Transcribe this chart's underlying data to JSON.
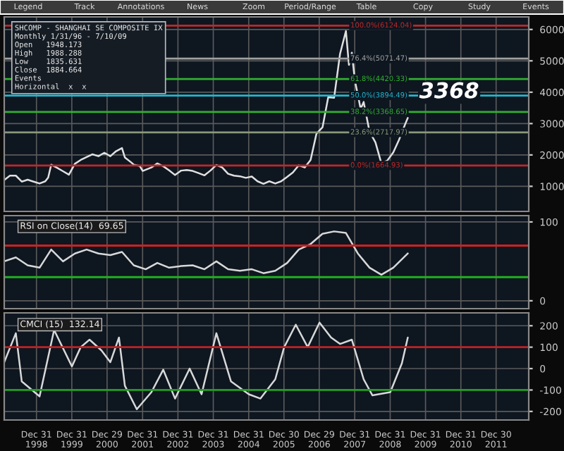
{
  "chart_data": [
    {
      "type": "other",
      "annotations": [
        "Legend",
        "Track",
        "Annotations",
        "News",
        "Zoom",
        "Period/Range",
        "Table",
        "Copy",
        "Study",
        "Events"
      ]
    },
    {
      "type": "line",
      "xlim": [
        "1998-02",
        "2012-12"
      ],
      "ylim": [
        200,
        6400
      ],
      "yticks": [
        1000,
        2000,
        3000,
        4000,
        5000,
        6000
      ],
      "xticks": [
        {
          "value": "1998-12-31",
          "label": null
        },
        {
          "value": "1999-12-31",
          "label": null
        },
        {
          "value": "2000-12-29",
          "label": null
        },
        {
          "value": "2001-12-31",
          "label": null
        },
        {
          "value": "2002-12-31",
          "label": null
        },
        {
          "value": "2003-12-31",
          "label": null
        },
        {
          "value": "2004-12-31",
          "label": null
        },
        {
          "value": "2005-12-30",
          "label": null
        },
        {
          "value": "2006-12-29",
          "label": null
        },
        {
          "value": "2007-12-31",
          "label": null
        },
        {
          "value": "2008-12-31",
          "label": null
        },
        {
          "value": "2009-12-31",
          "label": null
        },
        {
          "value": "2010-12-31",
          "label": null
        },
        {
          "value": "2011-12-30",
          "label": null
        }
      ],
      "tick_labels": "y",
      "grid": true,
      "marker": "none",
      "line_style": "solid",
      "series": [
        {
          "color": "#e0e0e0",
          "x": [
            "1998-02",
            "1998-04",
            "1998-06",
            "1998-08",
            "1998-10",
            "1998-12",
            "1999-02",
            "1999-04",
            "1999-05",
            "1999-06",
            "1999-08",
            "1999-10",
            "1999-12",
            "2000-02",
            "2000-04",
            "2000-06",
            "2000-08",
            "2000-10",
            "2000-12",
            "2001-02",
            "2001-04",
            "2001-06",
            "2001-07",
            "2001-09",
            "2001-10",
            "2001-12",
            "2002-01",
            "2002-04",
            "2002-06",
            "2002-08",
            "2002-10",
            "2002-12",
            "2003-02",
            "2003-04",
            "2003-06",
            "2003-08",
            "2003-10",
            "2003-12",
            "2004-02",
            "2004-04",
            "2004-06",
            "2004-08",
            "2004-10",
            "2004-12",
            "2005-02",
            "2005-04",
            "2005-06",
            "2005-08",
            "2005-10",
            "2005-12",
            "2006-02",
            "2006-04",
            "2006-06",
            "2006-08",
            "2006-10",
            "2006-12",
            "2007-02",
            "2007-04",
            "2007-06",
            "2007-08",
            "2007-10",
            "2007-11",
            "2007-12",
            "2008-01",
            "2008-03",
            "2008-04",
            "2008-06",
            "2008-08",
            "2008-10",
            "2008-12",
            "2009-02",
            "2009-04",
            "2009-06",
            "2009-07"
          ],
          "values": [
            1200,
            1340,
            1340,
            1150,
            1210,
            1150,
            1090,
            1160,
            1280,
            1690,
            1590,
            1480,
            1370,
            1720,
            1840,
            1930,
            2020,
            1960,
            2070,
            1960,
            2120,
            2220,
            1920,
            1770,
            1690,
            1650,
            1490,
            1600,
            1730,
            1640,
            1510,
            1360,
            1500,
            1520,
            1490,
            1420,
            1350,
            1500,
            1680,
            1600,
            1400,
            1340,
            1320,
            1270,
            1310,
            1160,
            1080,
            1160,
            1090,
            1160,
            1300,
            1440,
            1670,
            1600,
            1840,
            2680,
            2880,
            3840,
            3820,
            5220,
            5950,
            4870,
            5260,
            4380,
            3470,
            3690,
            2740,
            2400,
            1730,
            1820,
            2080,
            2480,
            2960,
            3180
          ]
        }
      ],
      "ref_lines": [
        {
          "axis": "y",
          "value": 6124.04,
          "label": "100.0%(6124.04)",
          "color": "#c02828"
        },
        {
          "axis": "y",
          "value": 5071.47,
          "label": "76.4%(5071.47)",
          "color": "#a0a0a0"
        },
        {
          "axis": "y",
          "value": 4420.33,
          "label": "61.8%(4420.33)",
          "color": "#30b030"
        },
        {
          "axis": "y",
          "value": 3894.49,
          "label": "50.0%(3894.49)",
          "color": "#20b8d0"
        },
        {
          "axis": "y",
          "value": 3368.65,
          "label": "38.2%(3368.65)",
          "color": "#30b030"
        },
        {
          "axis": "y",
          "value": 2717.97,
          "label": "23.6%(2717.97)",
          "color": "#8a9878"
        },
        {
          "axis": "y",
          "value": 1664.93,
          "label": "0.0%(1664.93)",
          "color": "#c02828"
        }
      ],
      "annotations": [
        "SHCOMP - SHANGHAI SE COMPOSITE IX",
        "Monthly 1/31/96 - 7/10/09",
        "Open   1948.173",
        "High   1988.288",
        "Low    1835.631",
        "Close  1884.664",
        "Events",
        "Horizontal  x  x",
        {
          "text": "3368",
          "x": "2010-09",
          "y": 4000
        }
      ]
    },
    {
      "type": "line",
      "xlim": [
        "1998-02",
        "2012-12"
      ],
      "ylim": [
        -10,
        108
      ],
      "yticks": [
        0,
        100
      ],
      "xticks": [
        {
          "value": "1998-12-31",
          "label": null
        },
        {
          "value": "1999-12-31",
          "label": null
        },
        {
          "value": "2000-12-29",
          "label": null
        },
        {
          "value": "2001-12-31",
          "label": null
        },
        {
          "value": "2002-12-31",
          "label": null
        },
        {
          "value": "2003-12-31",
          "label": null
        },
        {
          "value": "2004-12-31",
          "label": null
        },
        {
          "value": "2005-12-30",
          "label": null
        },
        {
          "value": "2006-12-29",
          "label": null
        },
        {
          "value": "2007-12-31",
          "label": null
        },
        {
          "value": "2008-12-31",
          "label": null
        },
        {
          "value": "2009-12-31",
          "label": null
        },
        {
          "value": "2010-12-31",
          "label": null
        },
        {
          "value": "2011-12-30",
          "label": null
        }
      ],
      "tick_labels": "y",
      "grid": true,
      "marker": "none",
      "line_style": "solid",
      "series": [
        {
          "color": "#d8d8d8",
          "x": [
            "1998-02",
            "1998-06",
            "1998-10",
            "1999-02",
            "1999-06",
            "1999-10",
            "2000-02",
            "2000-06",
            "2000-10",
            "2001-02",
            "2001-06",
            "2001-10",
            "2002-02",
            "2002-06",
            "2002-10",
            "2003-02",
            "2003-06",
            "2003-10",
            "2004-02",
            "2004-06",
            "2004-10",
            "2005-02",
            "2005-06",
            "2005-10",
            "2006-02",
            "2006-06",
            "2006-10",
            "2007-02",
            "2007-06",
            "2007-10",
            "2008-02",
            "2008-06",
            "2008-10",
            "2009-02",
            "2009-07"
          ],
          "values": [
            50,
            55,
            45,
            42,
            65,
            50,
            60,
            65,
            60,
            58,
            62,
            45,
            40,
            48,
            42,
            44,
            45,
            40,
            50,
            40,
            38,
            40,
            35,
            38,
            48,
            65,
            72,
            85,
            88,
            86,
            60,
            42,
            33,
            42,
            60
          ]
        }
      ],
      "ref_lines": [
        {
          "axis": "y",
          "value": 70,
          "color": "#d02020"
        },
        {
          "axis": "y",
          "value": 30,
          "color": "#20b020"
        }
      ],
      "annotations": [
        "RSI on Close(14)  69.65"
      ]
    },
    {
      "type": "line",
      "xlim": [
        "1998-02",
        "2012-12"
      ],
      "ylim": [
        -240,
        260
      ],
      "yticks": [
        -200,
        -100,
        0,
        100,
        200
      ],
      "xticks": [
        {
          "value": "1998-12-31",
          "label": "Dec 31\n1998"
        },
        {
          "value": "1999-12-31",
          "label": "Dec 31\n1999"
        },
        {
          "value": "2000-12-29",
          "label": "Dec 29\n2000"
        },
        {
          "value": "2001-12-31",
          "label": "Dec 31\n2001"
        },
        {
          "value": "2002-12-31",
          "label": "Dec 31\n2002"
        },
        {
          "value": "2003-12-31",
          "label": "Dec 31\n2003"
        },
        {
          "value": "2004-12-31",
          "label": "Dec 31\n2004"
        },
        {
          "value": "2005-12-30",
          "label": "Dec 30\n2005"
        },
        {
          "value": "2006-12-29",
          "label": "Dec 29\n2006"
        },
        {
          "value": "2007-12-31",
          "label": "Dec 31\n2007"
        },
        {
          "value": "2008-12-31",
          "label": "Dec 31\n2008"
        },
        {
          "value": "2009-12-31",
          "label": "Dec 31\n2009"
        },
        {
          "value": "2010-12-31",
          "label": "Dec 31\n2010"
        },
        {
          "value": "2011-12-30",
          "label": "Dec 30\n2011"
        }
      ],
      "grid": true,
      "marker": "none",
      "line_style": "solid",
      "series": [
        {
          "color": "#d8d8d8",
          "x": [
            "1998-02",
            "1998-06",
            "1998-08",
            "1999-02",
            "1999-07",
            "2000-01",
            "2000-04",
            "2000-07",
            "2000-11",
            "2001-02",
            "2001-05",
            "2001-07",
            "2001-11",
            "2002-04",
            "2002-08",
            "2002-12",
            "2003-05",
            "2003-09",
            "2004-02",
            "2004-07",
            "2005-01",
            "2005-05",
            "2005-10",
            "2006-01",
            "2006-05",
            "2006-09",
            "2007-01",
            "2007-05",
            "2007-08",
            "2007-12",
            "2008-04",
            "2008-07",
            "2009-01",
            "2009-05",
            "2009-07"
          ],
          "values": [
            30,
            165,
            -60,
            -130,
            180,
            10,
            100,
            135,
            85,
            30,
            145,
            -80,
            -190,
            -110,
            -5,
            -140,
            0,
            -120,
            165,
            -60,
            -120,
            -140,
            -50,
            100,
            205,
            100,
            215,
            145,
            115,
            135,
            -50,
            -125,
            -110,
            25,
            145
          ]
        }
      ],
      "ref_lines": [
        {
          "axis": "y",
          "value": 100,
          "color": "#c02020"
        },
        {
          "axis": "y",
          "value": -100,
          "color": "#20a020"
        }
      ],
      "annotations": [
        "CMCI (15)  132.14"
      ]
    }
  ]
}
